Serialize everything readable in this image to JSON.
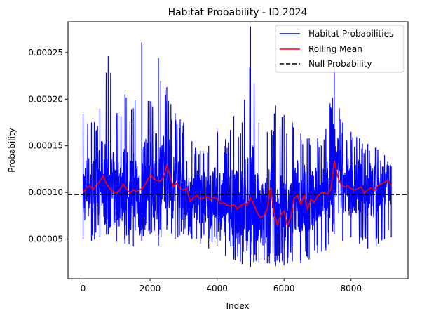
{
  "chart_data": {
    "type": "line",
    "title": "Habitat Probability - ID 2024",
    "xlabel": "Index",
    "ylabel": "Probability",
    "xlim": [
      -450,
      9700
    ],
    "ylim": [
      7.5e-06,
      0.000283
    ],
    "xticks": [
      0,
      2000,
      4000,
      6000,
      8000
    ],
    "xtick_labels": [
      "0",
      "2000",
      "4000",
      "6000",
      "8000"
    ],
    "yticks": [
      5e-05,
      0.0001,
      0.00015,
      0.0002,
      0.00025
    ],
    "ytick_labels": [
      "0.00005",
      "0.00010",
      "0.00015",
      "0.00020",
      "0.00025"
    ],
    "grid": false,
    "legend_position": "top-right",
    "legend": [
      "Habitat Probabilities",
      "Rolling Mean",
      "Null Probability"
    ],
    "series": [
      {
        "name": "Habitat Probabilities",
        "color": "#0000ff",
        "style": "solid",
        "x_range": [
          0,
          9200
        ],
        "envelope_x": [
          0,
          250,
          500,
          750,
          1000,
          1250,
          1500,
          1750,
          2000,
          2250,
          2500,
          2750,
          3000,
          3250,
          3500,
          3750,
          4000,
          4250,
          4500,
          4750,
          5000,
          5250,
          5500,
          5750,
          6000,
          6250,
          6500,
          6750,
          7000,
          7250,
          7500,
          7750,
          8000,
          8250,
          8500,
          8750,
          9000,
          9200
        ],
        "upper": [
          0.000184,
          0.000175,
          0.00019,
          0.000246,
          0.000185,
          0.000205,
          0.00019,
          0.000261,
          0.000198,
          0.000244,
          0.000213,
          0.000185,
          0.000175,
          0.000155,
          0.000145,
          0.00015,
          0.000168,
          0.000157,
          0.000182,
          0.000175,
          0.000278,
          0.000175,
          0.000165,
          0.000193,
          0.000183,
          0.000175,
          0.000163,
          0.000158,
          0.000158,
          0.000168,
          0.000237,
          0.000175,
          0.000165,
          0.000158,
          0.000152,
          0.000148,
          0.00014,
          0.000128
        ],
        "lower": [
          5e-05,
          4.8e-05,
          5.2e-05,
          5.5e-05,
          4.7e-05,
          4.5e-05,
          4.2e-05,
          4.8e-05,
          5.5e-05,
          4.3e-05,
          6e-05,
          5e-05,
          5.5e-05,
          5e-05,
          4.5e-05,
          4e-05,
          4.2e-05,
          3.2e-05,
          2.8e-05,
          2.3e-05,
          2e-05,
          2.5e-05,
          2.4e-05,
          2.1e-05,
          2.2e-05,
          2.6e-05,
          2.4e-05,
          2.8e-05,
          3.5e-05,
          3.8e-05,
          5.5e-05,
          4.8e-05,
          5.2e-05,
          4.5e-05,
          4e-05,
          4.3e-05,
          5e-05,
          5.2e-05
        ]
      },
      {
        "name": "Rolling Mean",
        "color": "#ff0000",
        "style": "solid",
        "x": [
          0,
          100,
          200,
          300,
          400,
          500,
          600,
          700,
          800,
          900,
          1000,
          1100,
          1200,
          1300,
          1400,
          1500,
          1600,
          1700,
          1800,
          1900,
          2000,
          2100,
          2200,
          2300,
          2400,
          2500,
          2600,
          2700,
          2800,
          2900,
          3000,
          3100,
          3200,
          3300,
          3400,
          3500,
          3600,
          3700,
          3800,
          3900,
          4000,
          4100,
          4200,
          4300,
          4400,
          4500,
          4600,
          4700,
          4800,
          4900,
          5000,
          5100,
          5200,
          5300,
          5400,
          5500,
          5600,
          5700,
          5800,
          5900,
          6000,
          6100,
          6200,
          6300,
          6400,
          6500,
          6600,
          6700,
          6800,
          6900,
          7000,
          7100,
          7200,
          7300,
          7400,
          7500,
          7600,
          7700,
          7800,
          7900,
          8000,
          8100,
          8200,
          8300,
          8400,
          8500,
          8600,
          8700,
          8800,
          8900,
          9000,
          9100,
          9200
        ],
        "y": [
          0.0001,
          0.000105,
          0.000107,
          0.000103,
          0.000108,
          0.000112,
          0.000118,
          0.000109,
          0.000104,
          0.000101,
          9.9e-05,
          0.000103,
          0.000109,
          0.000104,
          9.9e-05,
          0.000103,
          0.000101,
          0.000103,
          0.000105,
          0.000112,
          0.000119,
          0.000115,
          0.000113,
          0.000112,
          0.000116,
          0.000129,
          0.000117,
          0.000106,
          0.00011,
          0.000104,
          0.000103,
          0.000104,
          9e-05,
          9.5e-05,
          9.7e-05,
          9.3e-05,
          9.4e-05,
          9.6e-05,
          9.2e-05,
          9.5e-05,
          9.3e-05,
          8.8e-05,
          8.9e-05,
          8.6e-05,
          8.5e-05,
          8.7e-05,
          8.2e-05,
          8.6e-05,
          8.8e-05,
          8.6e-05,
          9.5e-05,
          8.7e-05,
          7.8e-05,
          7.3e-05,
          7.5e-05,
          8.2e-05,
          0.000105,
          7.8e-05,
          6.5e-05,
          7.6e-05,
          8e-05,
          6.4e-05,
          7.4e-05,
          9.4e-05,
          9.7e-05,
          8.7e-05,
          9.7e-05,
          8.2e-05,
          9.3e-05,
          8.9e-05,
          9.6e-05,
          9.9e-05,
          0.0001,
          9.8e-05,
          0.000104,
          0.000134,
          0.000117,
          0.000109,
          0.000106,
          0.000107,
          0.000104,
          0.000103,
          0.000104,
          0.000106,
          9.9e-05,
          0.000103,
          0.000105,
          0.000102,
          0.000107,
          0.000109,
          0.000111,
          0.000113,
          0.000107
        ]
      },
      {
        "name": "Null Probability",
        "color": "#000000",
        "style": "dashed",
        "y_constant": 9.78e-05
      }
    ]
  }
}
